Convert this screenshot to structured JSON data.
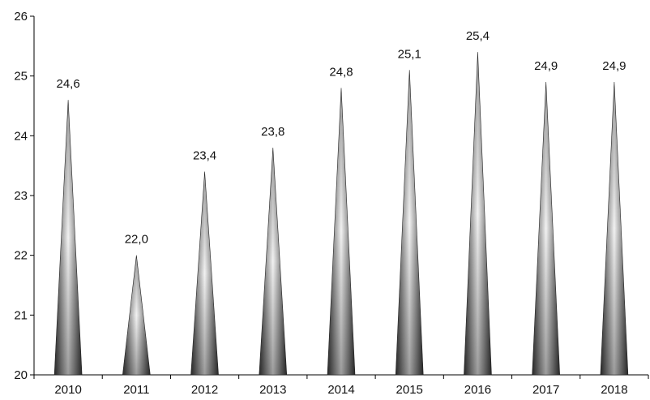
{
  "chart_data": {
    "type": "bar",
    "bar_shape": "cone",
    "categories": [
      "2010",
      "2011",
      "2012",
      "2013",
      "2014",
      "2015",
      "2016",
      "2017",
      "2018"
    ],
    "values": [
      24.6,
      22.0,
      23.4,
      23.8,
      24.8,
      25.1,
      25.4,
      24.9,
      24.9
    ],
    "value_labels": [
      "24,6",
      "22,0",
      "23,4",
      "23,8",
      "24,8",
      "25,1",
      "25,4",
      "24,9",
      "24,9"
    ],
    "y_ticks": [
      "20",
      "21",
      "22",
      "23",
      "24",
      "25",
      "26"
    ],
    "ylim": [
      20,
      26
    ],
    "title": "",
    "xlabel": "",
    "ylabel": "",
    "grid": false,
    "legend": "none",
    "colors": {
      "bar_dark": "#3c3c3c",
      "bar_light": "#f2f2f2",
      "axis": "#000000"
    }
  }
}
